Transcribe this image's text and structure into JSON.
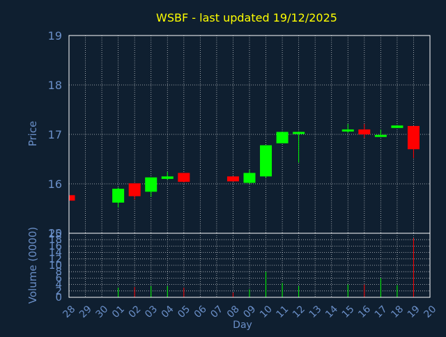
{
  "chart_data": {
    "type": "candlestick",
    "title": "WSBF - last updated 19/12/2025",
    "colors": {
      "background": "#0f1f30",
      "title": "#ffff00",
      "axis_text": "#6a8fc8",
      "tick_text": "#6a8fc8",
      "grid": "#ffffff",
      "up": "#00ff00",
      "down": "#ff0000"
    },
    "price_panel": {
      "ylabel": "Price",
      "ylim": [
        15,
        19
      ],
      "yticks": [
        "15",
        "16",
        "17",
        "18",
        "19"
      ],
      "yticks_values": [
        15,
        16,
        17,
        18,
        19
      ],
      "grid": true
    },
    "volume_panel": {
      "ylabel": "Volume (0000)",
      "ylim": [
        0,
        20
      ],
      "yticks": [
        "0",
        "2",
        "4",
        "6",
        "8",
        "10",
        "12",
        "14",
        "16",
        "18",
        "20"
      ],
      "yticks_values": [
        0,
        2,
        4,
        6,
        8,
        10,
        12,
        14,
        16,
        18,
        20
      ],
      "grid": true
    },
    "xlabel": "Day",
    "x_ticks": [
      "28",
      "29",
      "30",
      "01",
      "02",
      "03",
      "04",
      "05",
      "06",
      "07",
      "08",
      "09",
      "10",
      "11",
      "12",
      "13",
      "14",
      "15",
      "16",
      "17",
      "18",
      "19",
      "20"
    ],
    "candles": [
      {
        "day": "28",
        "open": 15.77,
        "high": 15.77,
        "low": 15.66,
        "close": 15.66,
        "volume": 0.3
      },
      {
        "day": "01",
        "open": 15.62,
        "high": 15.93,
        "low": 15.52,
        "close": 15.9,
        "volume": 3.0
      },
      {
        "day": "02",
        "open": 16.01,
        "high": 16.01,
        "low": 15.68,
        "close": 15.75,
        "volume": 3.2
      },
      {
        "day": "03",
        "open": 15.84,
        "high": 16.13,
        "low": 15.74,
        "close": 16.13,
        "volume": 3.5
      },
      {
        "day": "04",
        "open": 16.1,
        "high": 16.24,
        "low": 16.08,
        "close": 16.15,
        "volume": 3.5
      },
      {
        "day": "05",
        "open": 16.22,
        "high": 16.22,
        "low": 16.03,
        "close": 16.04,
        "volume": 3.0
      },
      {
        "day": "08",
        "open": 16.15,
        "high": 16.15,
        "low": 16.05,
        "close": 16.05,
        "volume": 1.5
      },
      {
        "day": "09",
        "open": 16.02,
        "high": 16.28,
        "low": 16.0,
        "close": 16.22,
        "volume": 2.5
      },
      {
        "day": "10",
        "open": 16.15,
        "high": 16.78,
        "low": 16.12,
        "close": 16.78,
        "volume": 8.0
      },
      {
        "day": "11",
        "open": 16.82,
        "high": 17.05,
        "low": 16.82,
        "close": 17.05,
        "volume": 4.5
      },
      {
        "day": "12",
        "open": 17.02,
        "high": 17.06,
        "low": 16.43,
        "close": 17.05,
        "volume": 3.5
      },
      {
        "day": "15",
        "open": 17.06,
        "high": 17.21,
        "low": 17.03,
        "close": 17.1,
        "volume": 4.0
      },
      {
        "day": "16",
        "open": 17.1,
        "high": 17.21,
        "low": 16.93,
        "close": 17.0,
        "volume": 4.0
      },
      {
        "day": "17",
        "open": 16.95,
        "high": 17.1,
        "low": 16.95,
        "close": 16.99,
        "volume": 6.0
      },
      {
        "day": "18",
        "open": 17.13,
        "high": 17.19,
        "low": 17.13,
        "close": 17.18,
        "volume": 3.8
      },
      {
        "day": "19",
        "open": 17.17,
        "high": 17.17,
        "low": 16.52,
        "close": 16.7,
        "volume": 18.5
      }
    ]
  }
}
